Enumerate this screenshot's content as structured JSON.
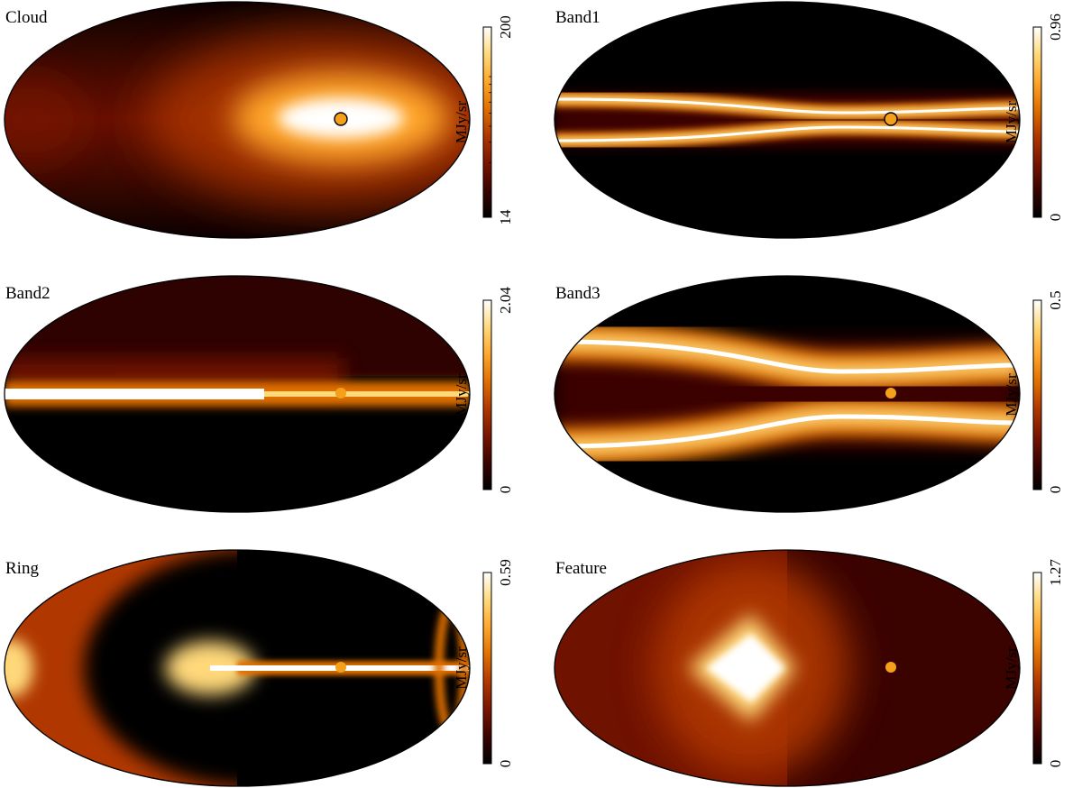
{
  "chart_data": [
    {
      "type": "heatmap",
      "title": "Cloud",
      "colorbar": {
        "label": "MJy/sr",
        "min": 14,
        "max": 200,
        "scale": "log",
        "tick_labels": [
          "14",
          "200"
        ]
      },
      "structure": "bright-central-blob",
      "marker": {
        "present": true,
        "outlined": true
      }
    },
    {
      "type": "heatmap",
      "title": "Band1",
      "colorbar": {
        "label": "MJy/sr",
        "min": 0,
        "max": 0.96,
        "scale": "linear",
        "tick_labels": [
          "0",
          "0.96"
        ]
      },
      "structure": "two-thin-bands",
      "marker": {
        "present": true,
        "outlined": true
      }
    },
    {
      "type": "heatmap",
      "title": "Band2",
      "colorbar": {
        "label": "MJy/sr",
        "min": 0,
        "max": 2.04,
        "scale": "linear",
        "tick_labels": [
          "0",
          "2.04"
        ]
      },
      "structure": "single-equatorial-band",
      "marker": {
        "present": true,
        "outlined": false
      }
    },
    {
      "type": "heatmap",
      "title": "Band3",
      "colorbar": {
        "label": "MJy/sr",
        "min": 0,
        "max": 0.5,
        "scale": "linear",
        "tick_labels": [
          "0",
          "0.5"
        ]
      },
      "structure": "two-wide-bands",
      "marker": {
        "present": true,
        "outlined": false
      }
    },
    {
      "type": "heatmap",
      "title": "Ring",
      "colorbar": {
        "label": "MJy/sr",
        "min": 0,
        "max": 0.59,
        "scale": "linear",
        "tick_labels": [
          "0",
          "0.59"
        ]
      },
      "structure": "ring",
      "marker": {
        "present": true,
        "outlined": false
      }
    },
    {
      "type": "heatmap",
      "title": "Feature",
      "colorbar": {
        "label": "MJy/sr",
        "min": 0,
        "max": 1.27,
        "scale": "linear",
        "tick_labels": [
          "0",
          "1.27"
        ]
      },
      "structure": "diamond-feature",
      "marker": {
        "present": true,
        "outlined": false
      }
    }
  ],
  "colors": {
    "colormap": [
      "#000000",
      "#3a0300",
      "#7a1500",
      "#b03800",
      "#e07000",
      "#ffa62b",
      "#ffd87a",
      "#ffffff"
    ],
    "marker_fill": "#f5a01a",
    "frame": "#000000"
  }
}
